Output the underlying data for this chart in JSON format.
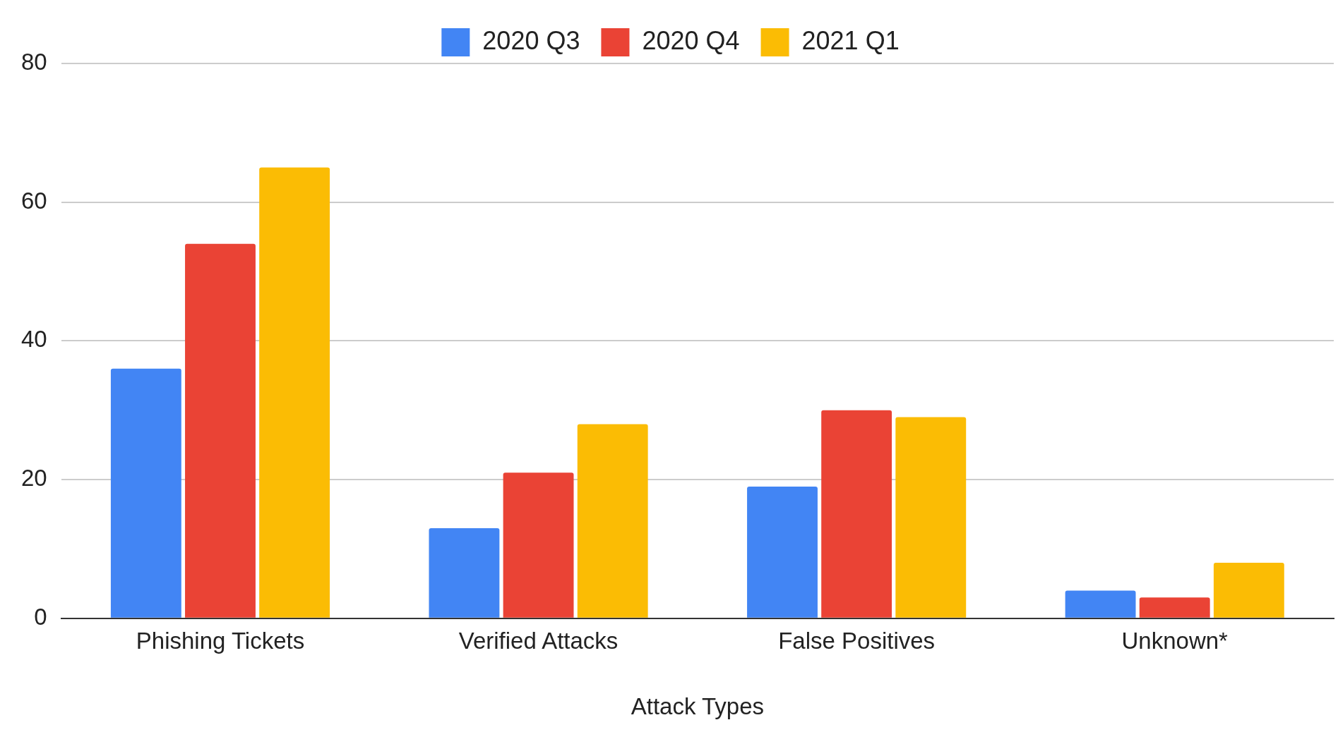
{
  "chart_data": {
    "type": "bar",
    "xlabel": "Attack Types",
    "categories": [
      "Phishing Tickets",
      "Verified Attacks",
      "False Positives",
      "Unknown*"
    ],
    "series": [
      {
        "name": "2020 Q3",
        "color": "#4285f4",
        "values": [
          36,
          13,
          19,
          4
        ]
      },
      {
        "name": "2020 Q4",
        "color": "#ea4335",
        "values": [
          54,
          21,
          30,
          3
        ]
      },
      {
        "name": "2021 Q1",
        "color": "#fbbc04",
        "values": [
          65,
          28,
          29,
          8
        ]
      }
    ],
    "ylim": [
      0,
      80
    ],
    "yticks": [
      0,
      20,
      40,
      60,
      80
    ],
    "grid": "y",
    "legend": "top"
  }
}
